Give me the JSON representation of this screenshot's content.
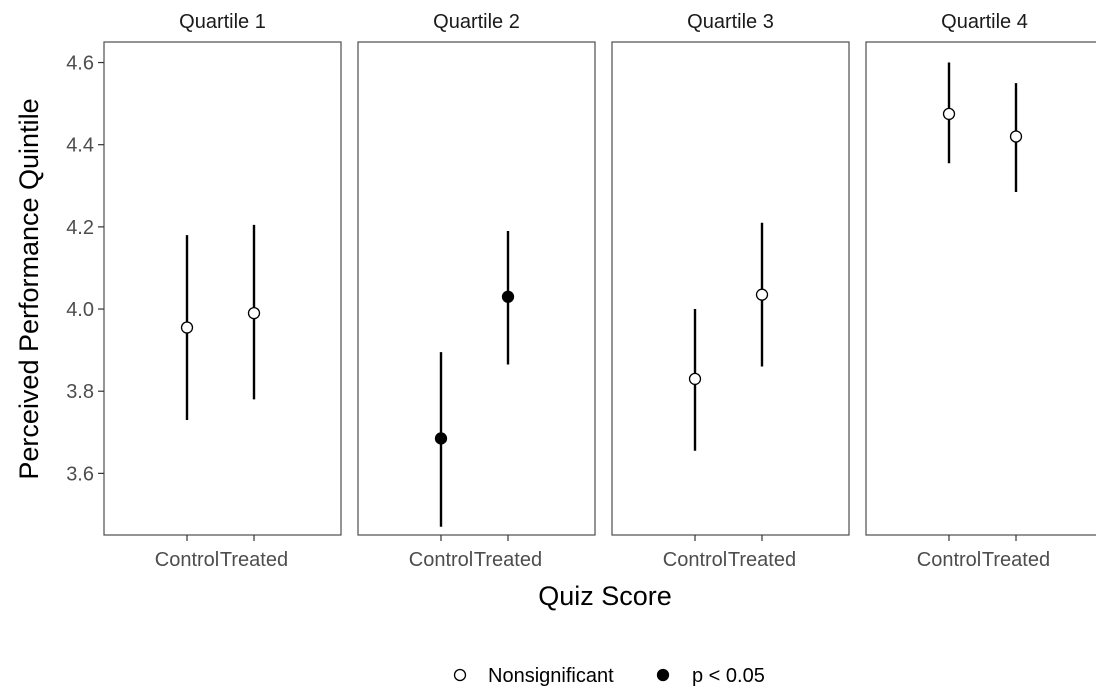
{
  "chart_data": {
    "type": "scatter",
    "subtype": "point-range-facets",
    "xlabel": "Quiz Score",
    "ylabel": "Perceived Performance Quintile",
    "ylim": [
      3.45,
      4.65
    ],
    "yticks": [
      3.6,
      3.8,
      4.0,
      4.2,
      4.4,
      4.6
    ],
    "ytick_labels": [
      "3.6",
      "3.8",
      "4.0",
      "4.2",
      "4.4",
      "4.6"
    ],
    "categories": [
      "Control",
      "Treated"
    ],
    "grid": false,
    "legend": {
      "position": "bottom",
      "items": [
        {
          "label": "Nonsignificant",
          "marker": "open-circle"
        },
        {
          "label": "p < 0.05",
          "marker": "filled-circle"
        }
      ]
    },
    "facets": [
      {
        "title": "Quartile 1",
        "points": [
          {
            "category": "Control",
            "y": 3.955,
            "low": 3.73,
            "high": 4.18,
            "significant": false
          },
          {
            "category": "Treated",
            "y": 3.99,
            "low": 3.78,
            "high": 4.205,
            "significant": false
          }
        ]
      },
      {
        "title": "Quartile 2",
        "points": [
          {
            "category": "Control",
            "y": 3.685,
            "low": 3.47,
            "high": 3.895,
            "significant": true
          },
          {
            "category": "Treated",
            "y": 4.03,
            "low": 3.865,
            "high": 4.19,
            "significant": true
          }
        ]
      },
      {
        "title": "Quartile 3",
        "points": [
          {
            "category": "Control",
            "y": 3.83,
            "low": 3.655,
            "high": 4.0,
            "significant": false
          },
          {
            "category": "Treated",
            "y": 4.035,
            "low": 3.86,
            "high": 4.21,
            "significant": false
          }
        ]
      },
      {
        "title": "Quartile 4",
        "points": [
          {
            "category": "Control",
            "y": 4.475,
            "low": 4.355,
            "high": 4.6,
            "significant": false
          },
          {
            "category": "Treated",
            "y": 4.42,
            "low": 4.285,
            "high": 4.55,
            "significant": false
          }
        ]
      }
    ]
  }
}
